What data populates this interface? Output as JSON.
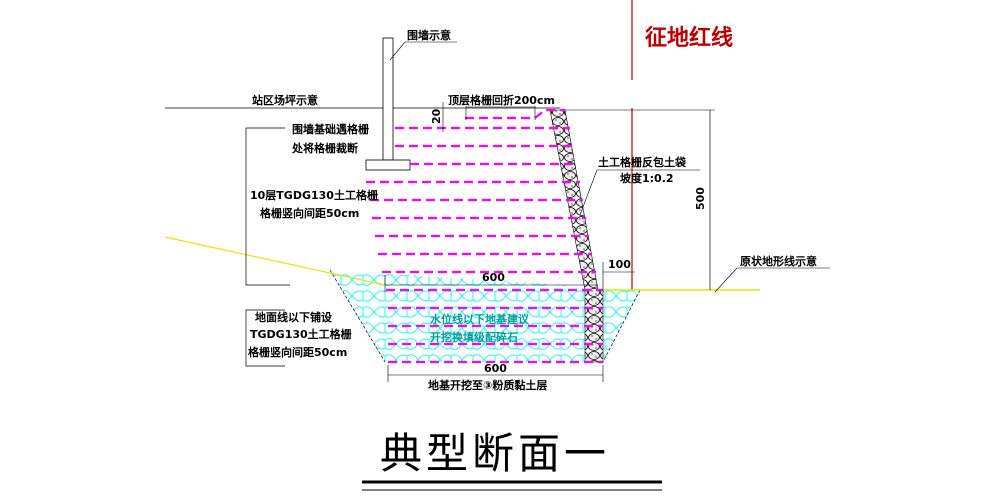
{
  "title": "典型断面一",
  "red_line_label": "征地红线",
  "labels": {
    "wall": "围墙示意",
    "site_ground": "站区场坪示意",
    "top_fold": "顶层格栅回折200cm",
    "top_offset": "20",
    "wall_cut_line1": "围墙基础遇格栅",
    "wall_cut_line2": "处将格栅裁断",
    "layers_line1": "10层TGDG130土工格栅",
    "layers_line2": "格栅竖向间距50cm",
    "facing_line1": "土工格栅反包土袋",
    "facing_line2": "坡度1:0.2",
    "height_dim": "500",
    "offset_dim": "100",
    "width_dim_top": "600",
    "original_ground": "原状地形线示意",
    "below_line1": "地面线以下铺设",
    "below_line2": "TGDG130土工格栅",
    "below_line3": "格栅竖向间距50cm",
    "fill_line1": "水位线以下地基建议",
    "fill_line2": "开挖换填级配碎石",
    "width_dim_bottom": "600",
    "excavate": "地基开挖至③粉质黏土层"
  },
  "colors": {
    "geogrid": "#ff00ff",
    "gravel": "#00ffff",
    "red_line": "#d00000",
    "ground": "#ffff00"
  }
}
